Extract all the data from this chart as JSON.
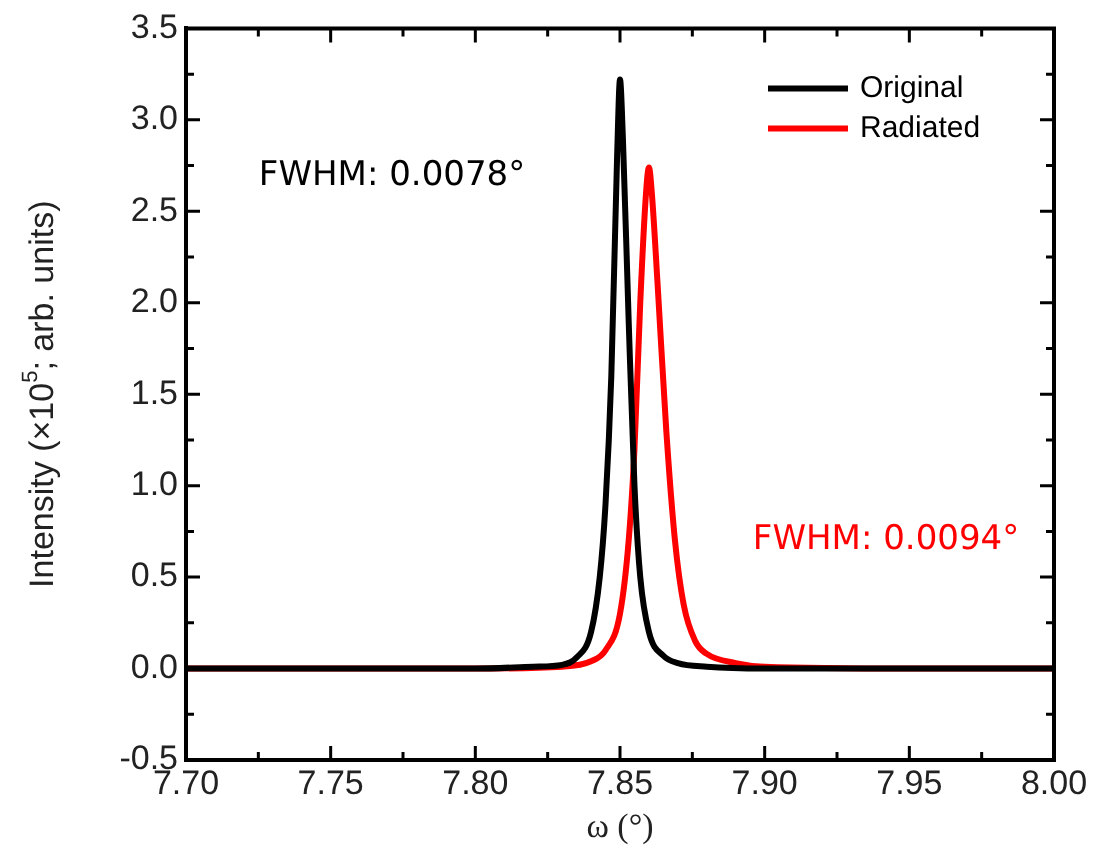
{
  "chart_data": {
    "type": "line",
    "xlabel": "ω (°)",
    "ylabel": "Intensity (×10$^{5}$; arb. units)",
    "xlim": [
      7.7,
      8.0
    ],
    "xticks": [
      {
        "value": 7.7,
        "label": "7.70"
      },
      {
        "value": 7.75,
        "label": "7.75"
      },
      {
        "value": 7.8,
        "label": "7.80"
      },
      {
        "value": 7.85,
        "label": "7.85"
      },
      {
        "value": 7.9,
        "label": "7.90"
      },
      {
        "value": 7.95,
        "label": "7.95"
      },
      {
        "value": 8.0,
        "label": "8.00"
      }
    ],
    "ylim": [
      -0.5,
      3.5
    ],
    "yticks": [
      {
        "value": -0.5,
        "label": "-0.5"
      },
      {
        "value": 0,
        "label": "0.0"
      },
      {
        "value": 0.5,
        "label": "0.5"
      },
      {
        "value": 1,
        "label": "1.0"
      },
      {
        "value": 1.5,
        "label": "1.5"
      },
      {
        "value": 2,
        "label": "2.0"
      },
      {
        "value": 2.5,
        "label": "2.5"
      },
      {
        "value": 3,
        "label": "3.0"
      },
      {
        "value": 3.5,
        "label": "3.5"
      }
    ],
    "grid": false,
    "legend": "top right",
    "marker": "none",
    "line_style": "solid",
    "series": [
      {
        "name": "Original",
        "color": "#000000",
        "x": [
          7.7,
          7.75,
          7.8,
          7.82,
          7.83,
          7.835,
          7.84,
          7.843,
          7.845,
          7.847,
          7.849,
          7.85,
          7.851,
          7.853,
          7.855,
          7.857,
          7.86,
          7.865,
          7.87,
          7.88,
          7.9,
          7.95,
          8.0
        ],
        "values": [
          0,
          0,
          0,
          0.01,
          0.02,
          0.06,
          0.2,
          0.5,
          0.9,
          1.6,
          2.8,
          3.22,
          2.9,
          1.9,
          1.0,
          0.5,
          0.2,
          0.07,
          0.03,
          0.01,
          0,
          0,
          0
        ]
      },
      {
        "name": "Radiated",
        "color": "#ff0000",
        "x": [
          7.7,
          7.75,
          7.8,
          7.83,
          7.84,
          7.845,
          7.85,
          7.853,
          7.855,
          7.857,
          7.859,
          7.86,
          7.861,
          7.863,
          7.866,
          7.869,
          7.872,
          7.876,
          7.88,
          7.89,
          7.9,
          7.95,
          8.0
        ],
        "values": [
          0,
          0,
          0,
          0.01,
          0.04,
          0.1,
          0.3,
          0.7,
          1.2,
          2.0,
          2.6,
          2.74,
          2.6,
          2.1,
          1.3,
          0.7,
          0.35,
          0.15,
          0.08,
          0.03,
          0.01,
          0,
          0
        ]
      }
    ],
    "annotations": [
      "FWHM: 0.0078°",
      "FWHM: 0.0094°"
    ]
  }
}
